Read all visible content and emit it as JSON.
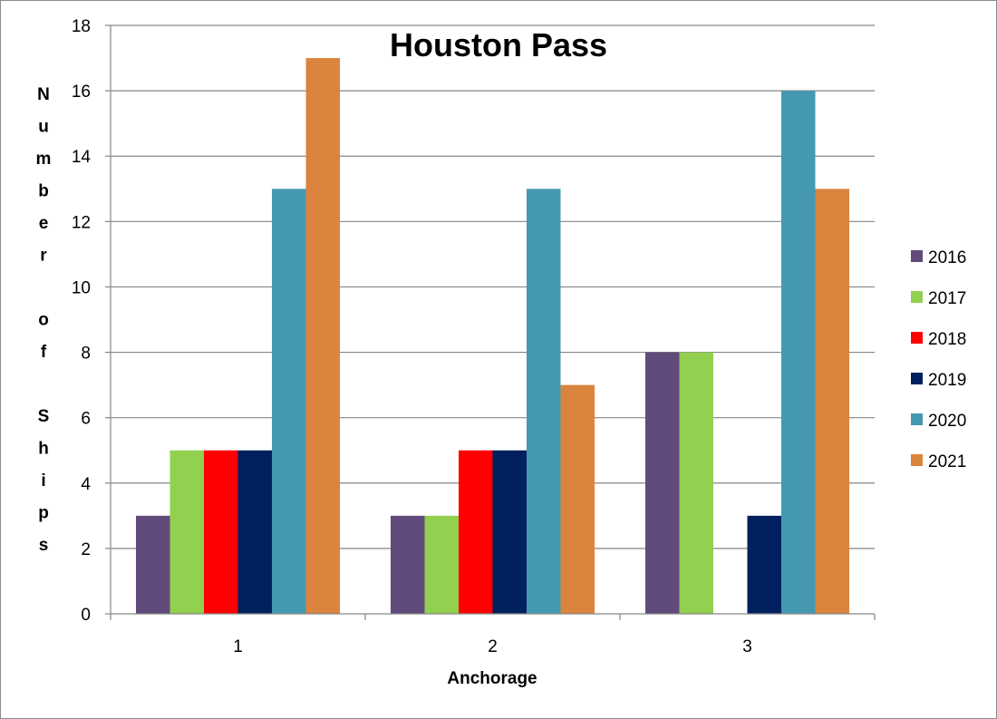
{
  "chart_data": {
    "type": "bar",
    "title": "Houston Pass",
    "xlabel": "Anchorage",
    "ylabel": "Number of Ships",
    "categories": [
      "1",
      "2",
      "3"
    ],
    "series": [
      {
        "name": "2016",
        "color": "#604A7B",
        "values": [
          3,
          3,
          8
        ]
      },
      {
        "name": "2017",
        "color": "#92D050",
        "values": [
          5,
          3,
          8
        ]
      },
      {
        "name": "2018",
        "color": "#FF0000",
        "values": [
          5,
          5,
          0
        ]
      },
      {
        "name": "2019",
        "color": "#002060",
        "values": [
          5,
          5,
          3
        ]
      },
      {
        "name": "2020",
        "color": "#4499B0",
        "values": [
          13,
          13,
          16
        ]
      },
      {
        "name": "2021",
        "color": "#DB843D",
        "values": [
          17,
          7,
          13
        ]
      }
    ],
    "ylim": [
      0,
      18
    ],
    "yticks": [
      0,
      2,
      4,
      6,
      8,
      10,
      12,
      14,
      16,
      18
    ],
    "grid": true,
    "legend_position": "right"
  }
}
